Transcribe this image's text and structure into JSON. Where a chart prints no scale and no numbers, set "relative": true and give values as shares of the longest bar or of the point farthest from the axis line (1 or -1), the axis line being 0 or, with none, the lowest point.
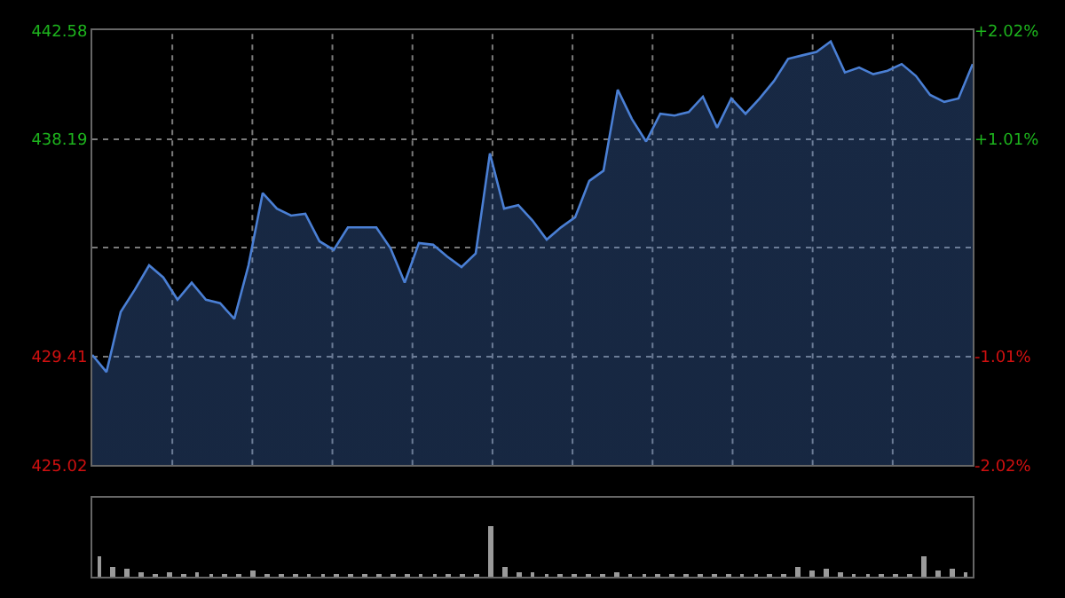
{
  "chart_data": [
    {
      "type": "area",
      "categories": [
        null,
        null,
        null,
        null,
        null,
        null,
        null,
        null,
        null,
        null,
        null,
        null,
        null,
        null,
        null,
        null,
        null,
        null,
        null,
        null,
        null,
        null,
        null,
        null,
        null,
        null,
        null,
        null,
        null,
        null,
        null,
        null,
        null,
        null,
        null,
        null,
        null,
        null,
        null,
        null,
        null,
        null,
        null,
        null,
        null,
        null,
        null,
        null,
        null,
        null,
        null,
        null,
        null,
        null,
        null,
        null,
        null,
        null,
        null,
        null,
        null,
        null,
        null
      ],
      "series": [
        {
          "color": "#4a7fd4",
          "values": [
            429.47,
            428.78,
            431.21,
            432.11,
            433.09,
            432.6,
            431.7,
            432.39,
            431.7,
            431.56,
            430.93,
            433.09,
            436.01,
            435.38,
            435.1,
            435.17,
            434.06,
            433.71,
            434.62,
            434.62,
            434.62,
            433.78,
            432.39,
            433.99,
            433.92,
            433.44,
            433.02,
            433.57,
            437.61,
            435.38,
            435.52,
            434.9,
            434.13,
            434.62,
            435.03,
            436.5,
            436.91,
            440.18,
            439.0,
            438.09,
            439.21,
            439.14,
            439.28,
            439.9,
            438.65,
            439.83,
            439.21,
            439.83,
            440.53,
            441.43,
            441.57,
            441.71,
            442.13,
            440.88,
            441.08,
            440.81,
            440.95,
            441.22,
            440.74,
            439.97,
            439.69,
            439.83,
            441.22
          ]
        }
      ],
      "ylim": [
        425.02,
        442.58
      ],
      "yticks": [
        425.02,
        429.41,
        {
          "value": 433.8,
          "label": null
        },
        438.19,
        442.58
      ],
      "y2lim": [
        -2.02,
        2.02
      ],
      "y2ticks": [
        {
          "value": -2.02,
          "label": "-2.02%"
        },
        {
          "value": -1.01,
          "label": "-1.01%"
        },
        {
          "value": 1.01,
          "label": "+1.01%"
        },
        {
          "value": 2.02,
          "label": "+2.02%"
        }
      ],
      "grid": true,
      "marker": "none",
      "line_style": "solid",
      "tick_labels": "y"
    },
    {
      "type": "bar",
      "relative": true,
      "color": "#9a9a9a",
      "categories": [
        null,
        null,
        null,
        null,
        null,
        null,
        null,
        null,
        null,
        null,
        null,
        null,
        null,
        null,
        null,
        null,
        null,
        null,
        null,
        null,
        null,
        null,
        null,
        null,
        null,
        null,
        null,
        null,
        null,
        null,
        null,
        null,
        null,
        null,
        null,
        null,
        null,
        null,
        null,
        null,
        null,
        null,
        null,
        null,
        null,
        null,
        null,
        null,
        null,
        null,
        null,
        null,
        null,
        null,
        null,
        null,
        null,
        null,
        null,
        null,
        null,
        null,
        null
      ],
      "values": [
        0.4,
        0.2,
        0.15,
        0.08,
        0.07,
        0.1,
        0.06,
        0.08,
        0.05,
        0.05,
        0.06,
        0.12,
        0.05,
        0.06,
        0.05,
        0.04,
        0.06,
        0.05,
        0.04,
        0.05,
        0.04,
        0.05,
        0.04,
        0.05,
        0.04,
        0.05,
        0.04,
        0.05,
        1,
        0.2,
        0.1,
        0.08,
        0.06,
        0.05,
        0.06,
        0.05,
        0.06,
        0.08,
        0.07,
        0.06,
        0.05,
        0.05,
        0.04,
        0.05,
        0.04,
        0.05,
        0.04,
        0.05,
        0.06,
        0.05,
        0.2,
        0.12,
        0.15,
        0.08,
        0.06,
        0.05,
        0.06,
        0.05,
        0.06,
        0.4,
        0.12,
        0.15,
        0.1
      ],
      "grid": false,
      "tick_labels": false
    }
  ]
}
